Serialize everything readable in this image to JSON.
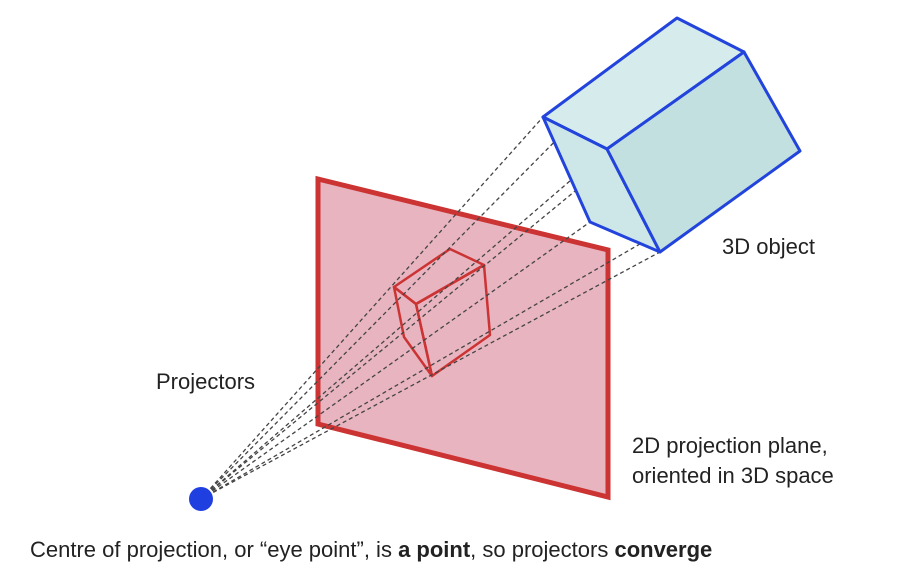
{
  "labels": {
    "object": "3D object",
    "projectors": "Projectors",
    "plane_line1": "2D projection plane,",
    "plane_line2": "oriented in 3D space"
  },
  "caption": {
    "part1": "Centre of projection, or “eye point”, is ",
    "bold1": "a point",
    "part2": ", so projectors ",
    "bold2": "converge"
  },
  "colors": {
    "plane_fill": "#e8b4c0",
    "plane_edge": "#cc3333",
    "projected_object_edge": "#cc3333",
    "object_fill": "#cfe8e8",
    "object_edge": "#2244dd",
    "eye_point": "#1f3fe0",
    "projector_line": "#444444"
  }
}
